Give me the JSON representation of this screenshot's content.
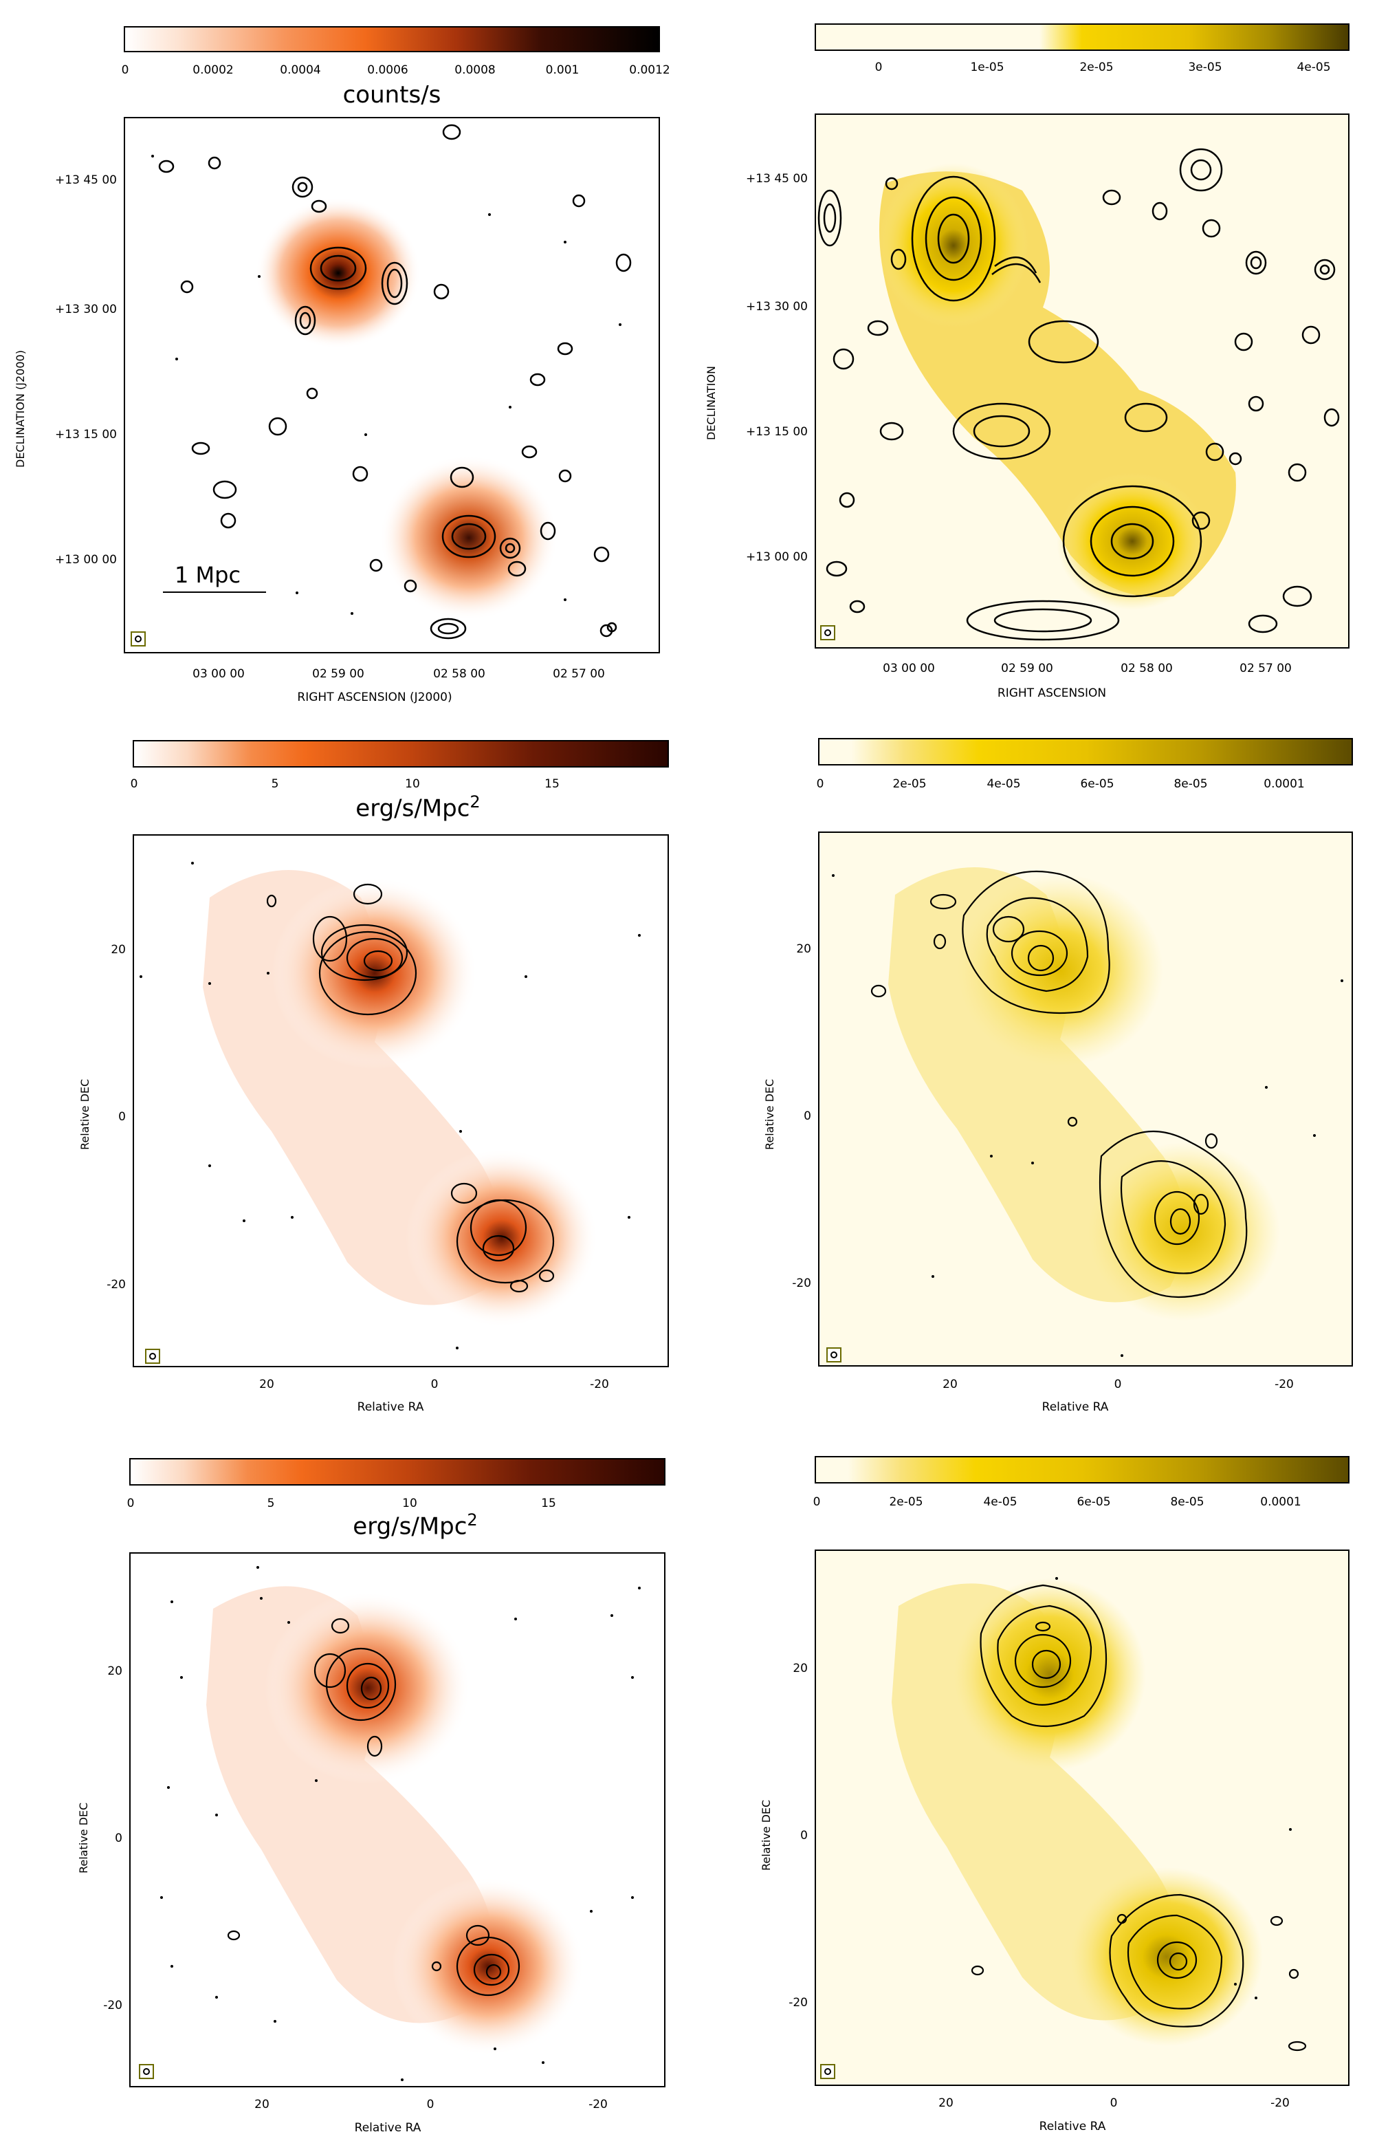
{
  "colors": {
    "orange_low": "#ffffff",
    "orange_mid": "#f26a1b",
    "orange_high": "#000000",
    "orange_dark": "#3a0a00",
    "yellow_low": "#fffbe8",
    "yellow_mid": "#f2c800",
    "yellow_high": "#5a4a00",
    "beam_frame": "#6b6b00"
  },
  "panels": {
    "top_left": {
      "colorbar_ticks": [
        "0",
        "0.0002",
        "0.0004",
        "0.0006",
        "0.0008",
        "0.001",
        "0.0012"
      ],
      "colorbar_title": "counts/s",
      "y_ticks": [
        "+13 45 00",
        "+13 30 00",
        "+13 15 00",
        "+13 00 00"
      ],
      "x_ticks": [
        "03 00 00",
        "02 59 00",
        "02 58 00",
        "02 57 00"
      ],
      "ylabel": "DECLINATION (J2000)",
      "xlabel": "RIGHT ASCENSION (J2000)",
      "scale_label": "1 Mpc"
    },
    "top_right": {
      "colorbar_ticks": [
        "0",
        "1e-05",
        "2e-05",
        "3e-05",
        "4e-05"
      ],
      "y_ticks": [
        "+13 45 00",
        "+13 30 00",
        "+13 15 00",
        "+13 00 00"
      ],
      "x_ticks": [
        "03 00 00",
        "02 59 00",
        "02 58 00",
        "02 57 00"
      ],
      "ylabel": "DECLINATION",
      "xlabel": "RIGHT ASCENSION"
    },
    "mid_left": {
      "colorbar_ticks": [
        "0",
        "5",
        "10",
        "15"
      ],
      "colorbar_title": "erg/s/Mpc",
      "colorbar_title_sup": "2",
      "y_ticks": [
        "20",
        "0",
        "-20"
      ],
      "x_ticks": [
        "20",
        "0",
        "-20"
      ],
      "ylabel": "Relative DEC",
      "xlabel": "Relative RA"
    },
    "mid_right": {
      "colorbar_ticks": [
        "0",
        "2e-05",
        "4e-05",
        "6e-05",
        "8e-05",
        "0.0001"
      ],
      "y_ticks": [
        "20",
        "0",
        "-20"
      ],
      "x_ticks": [
        "20",
        "0",
        "-20"
      ],
      "ylabel": "Relative DEC",
      "xlabel": "Relative RA"
    },
    "bot_left": {
      "colorbar_ticks": [
        "0",
        "5",
        "10",
        "15"
      ],
      "colorbar_title": "erg/s/Mpc",
      "colorbar_title_sup": "2",
      "y_ticks": [
        "20",
        "0",
        "-20"
      ],
      "x_ticks": [
        "20",
        "0",
        "-20"
      ],
      "ylabel": "Relative DEC",
      "xlabel": "Relative RA"
    },
    "bot_right": {
      "colorbar_ticks": [
        "0",
        "2e-05",
        "4e-05",
        "6e-05",
        "8e-05",
        "0.0001"
      ],
      "y_ticks": [
        "20",
        "0",
        "-20"
      ],
      "x_ticks": [
        "20",
        "0",
        "-20"
      ],
      "ylabel": "Relative DEC",
      "xlabel": "Relative RA"
    }
  }
}
